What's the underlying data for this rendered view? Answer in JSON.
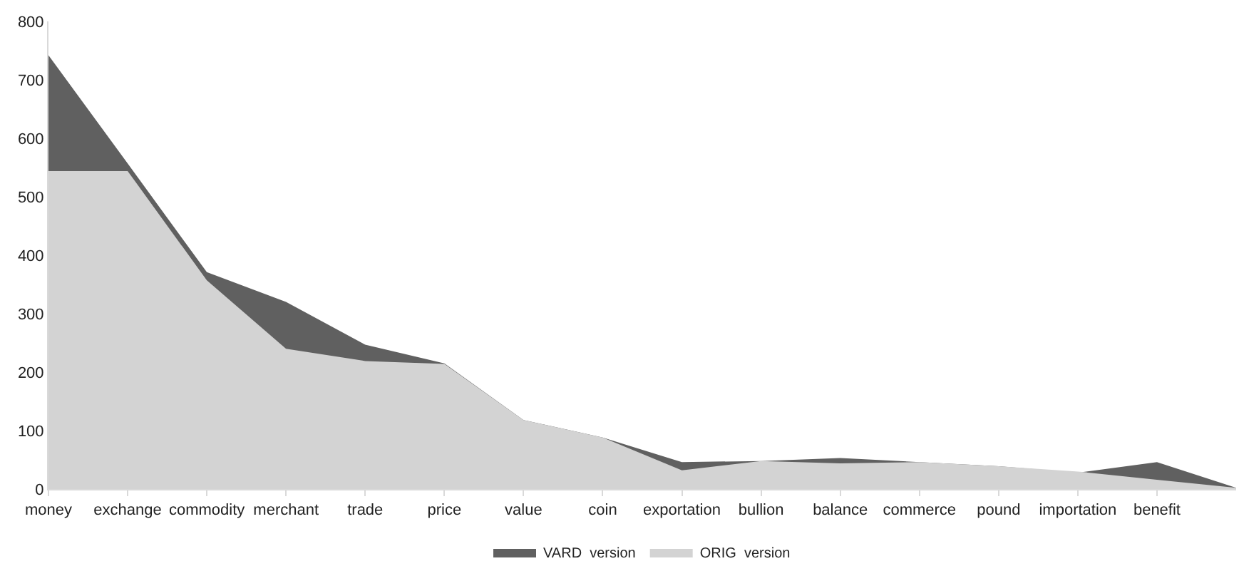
{
  "chart_data": {
    "type": "area",
    "categories": [
      "money",
      "exchange",
      "commodity",
      "merchant",
      "trade",
      "price",
      "value",
      "coin",
      "exportation",
      "bullion",
      "balance",
      "commerce",
      "pound",
      "importation",
      "benefit",
      null
    ],
    "series": [
      {
        "name": "VARD  version",
        "color": "#606060",
        "values": [
          742,
          557,
          371,
          320,
          247,
          215,
          118,
          88,
          46,
          48,
          53,
          46,
          39,
          28,
          46,
          2
        ]
      },
      {
        "name": "ORIG  version",
        "color": "#d3d3d3",
        "values": [
          544,
          544,
          357,
          240,
          219,
          214,
          118,
          88,
          32,
          48,
          44,
          46,
          39,
          30,
          16,
          2
        ]
      }
    ],
    "ylim": [
      0,
      800
    ],
    "yticks": [
      0,
      100,
      200,
      300,
      400,
      500,
      600,
      700,
      800
    ],
    "legend": "bottom"
  }
}
